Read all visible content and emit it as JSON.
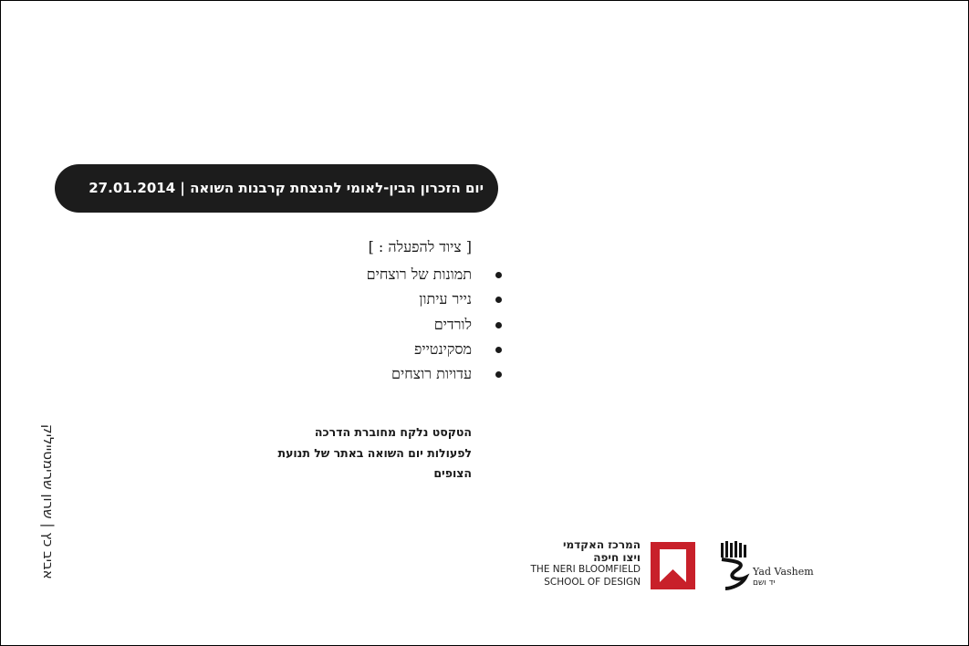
{
  "header": {
    "title": "יום הזכרון הבין-לאומי להנצחת קרבנות השואה | 27.01.2014"
  },
  "equipment": {
    "heading": "[ ציוד להפעלה : ]",
    "items": [
      "תמונות של רוצחים",
      "נייר עיתון",
      "לורדים",
      "מסקינטייפ",
      "עדויות רוצחים"
    ]
  },
  "note": {
    "lines": [
      "הטקסט נלקח מחוברת הדרכה",
      "לפעולות יום השואה באתר של תנועת",
      "הצופים"
    ]
  },
  "credits": "אביב כץ | שרון שרימטייליק",
  "logos": {
    "neri": {
      "he_line1": "המרכז האקדמי",
      "he_line2": "ויצו חיפה",
      "en_line1": "THE NERI BLOOMFIELD",
      "en_line2": "SCHOOL OF DESIGN",
      "color": "#c8202a"
    },
    "yad_vashem": {
      "en": "Yad Vashem",
      "he": "יד ושם"
    }
  }
}
